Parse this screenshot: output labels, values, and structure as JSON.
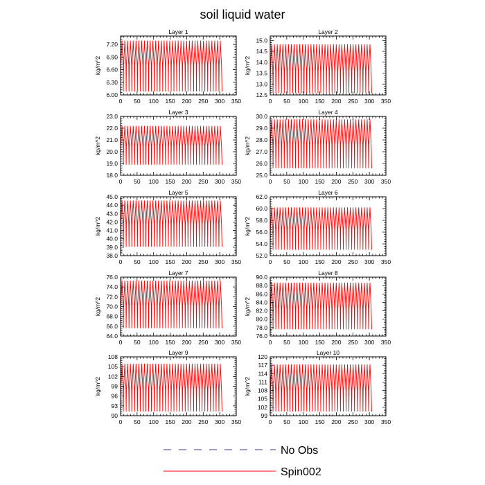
{
  "figure": {
    "title": "soil liquid water"
  },
  "legend": {
    "placement": "bottom-center",
    "entries": [
      {
        "label": "No Obs",
        "color": "#3b3b8f",
        "dash": true
      },
      {
        "label": "Spin002",
        "color": "#ff0000",
        "dash": false
      }
    ]
  },
  "chart_data": [
    {
      "type": "line",
      "title": "Layer 1",
      "ylabel": "kg/m^2",
      "xlim": [
        0,
        350
      ],
      "ylim": [
        6.0,
        7.4
      ],
      "xticks": [
        0,
        50,
        100,
        150,
        200,
        250,
        300,
        350
      ],
      "xtick_labels": [
        "0",
        "50",
        "100",
        "150",
        "200",
        "250",
        "300",
        "350"
      ],
      "yticks": [
        6.0,
        6.3,
        6.6,
        6.9,
        7.2
      ],
      "ytick_labels": [
        "6.00",
        "6.30",
        "6.60",
        "6.90",
        "7.20"
      ],
      "series": [
        {
          "name": "Spin002",
          "color": "#ff0000",
          "x_start": 0,
          "x_end": 307,
          "period": 8.5,
          "min": 6.08,
          "low": 6.72,
          "high": 7.12,
          "max": 7.29
        }
      ]
    },
    {
      "type": "line",
      "title": "Layer 2",
      "ylabel": "kg/m^2",
      "xlim": [
        0,
        350
      ],
      "ylim": [
        12.5,
        15.2
      ],
      "xticks": [
        0,
        50,
        100,
        150,
        200,
        250,
        300,
        350
      ],
      "xtick_labels": [
        "0",
        "50",
        "100",
        "150",
        "200",
        "250",
        "300",
        "350"
      ],
      "yticks": [
        12.5,
        13.0,
        13.5,
        14.0,
        14.5,
        15.0
      ],
      "ytick_labels": [
        "12.5",
        "13.0",
        "13.5",
        "14.0",
        "14.5",
        "15.0"
      ],
      "series": [
        {
          "name": "Spin002",
          "color": "#ff0000",
          "x_start": 0,
          "x_end": 307,
          "period": 8.5,
          "min": 12.58,
          "low": 13.6,
          "high": 14.55,
          "max": 14.82
        }
      ]
    },
    {
      "type": "line",
      "title": "Layer 3",
      "ylabel": "kg/m^2",
      "xlim": [
        0,
        350
      ],
      "ylim": [
        18.0,
        23.0
      ],
      "xticks": [
        0,
        50,
        100,
        150,
        200,
        250,
        300,
        350
      ],
      "xtick_labels": [
        "0",
        "50",
        "100",
        "150",
        "200",
        "250",
        "300",
        "350"
      ],
      "yticks": [
        18.0,
        19.0,
        20.0,
        21.0,
        22.0,
        23.0
      ],
      "ytick_labels": [
        "18.0",
        "19.0",
        "20.0",
        "21.0",
        "22.0",
        "23.0"
      ],
      "series": [
        {
          "name": "Spin002",
          "color": "#ff0000",
          "x_start": 0,
          "x_end": 307,
          "period": 8.5,
          "min": 18.9,
          "low": 20.5,
          "high": 21.7,
          "max": 22.2
        }
      ]
    },
    {
      "type": "line",
      "title": "Layer 4",
      "ylabel": "kg/m^2",
      "xlim": [
        0,
        350
      ],
      "ylim": [
        25.0,
        30.0
      ],
      "xticks": [
        0,
        50,
        100,
        150,
        200,
        250,
        300,
        350
      ],
      "xtick_labels": [
        "0",
        "50",
        "100",
        "150",
        "200",
        "250",
        "300",
        "350"
      ],
      "yticks": [
        25.0,
        26.0,
        27.0,
        28.0,
        29.0,
        30.0
      ],
      "ytick_labels": [
        "25.0",
        "26.0",
        "27.0",
        "28.0",
        "29.0",
        "30.0"
      ],
      "series": [
        {
          "name": "Spin002",
          "color": "#ff0000",
          "x_start": 0,
          "x_end": 307,
          "period": 8.5,
          "min": 25.6,
          "low": 27.6,
          "high": 29.2,
          "max": 29.75
        }
      ]
    },
    {
      "type": "line",
      "title": "Layer 5",
      "ylabel": "kg/m^2",
      "xlim": [
        0,
        350
      ],
      "ylim": [
        38.0,
        45.0
      ],
      "xticks": [
        0,
        50,
        100,
        150,
        200,
        250,
        300,
        350
      ],
      "xtick_labels": [
        "0",
        "50",
        "100",
        "150",
        "200",
        "250",
        "300",
        "350"
      ],
      "yticks": [
        38.0,
        39.0,
        40.0,
        41.0,
        42.0,
        43.0,
        44.0,
        45.0
      ],
      "ytick_labels": [
        "38.0",
        "39.0",
        "40.0",
        "41.0",
        "42.0",
        "43.0",
        "44.0",
        "45.0"
      ],
      "series": [
        {
          "name": "Spin002",
          "color": "#ff0000",
          "x_start": 0,
          "x_end": 307,
          "period": 8.5,
          "min": 39.05,
          "low": 41.8,
          "high": 43.9,
          "max": 44.55
        }
      ]
    },
    {
      "type": "line",
      "title": "Layer 6",
      "ylabel": "kg/m^2",
      "xlim": [
        0,
        350
      ],
      "ylim": [
        52.0,
        62.0
      ],
      "xticks": [
        0,
        50,
        100,
        150,
        200,
        250,
        300,
        350
      ],
      "xtick_labels": [
        "0",
        "50",
        "100",
        "150",
        "200",
        "250",
        "300",
        "350"
      ],
      "yticks": [
        52.0,
        54.0,
        56.0,
        58.0,
        60.0,
        62.0
      ],
      "ytick_labels": [
        "52.0",
        "54.0",
        "56.0",
        "58.0",
        "60.0",
        "62.0"
      ],
      "series": [
        {
          "name": "Spin002",
          "color": "#ff0000",
          "x_start": 0,
          "x_end": 307,
          "period": 8.5,
          "min": 53.0,
          "low": 56.5,
          "high": 59.2,
          "max": 60.2
        }
      ]
    },
    {
      "type": "line",
      "title": "Layer 7",
      "ylabel": "kg/m^2",
      "xlim": [
        0,
        350
      ],
      "ylim": [
        64.0,
        76.0
      ],
      "xticks": [
        0,
        50,
        100,
        150,
        200,
        250,
        300,
        350
      ],
      "xtick_labels": [
        "0",
        "50",
        "100",
        "150",
        "200",
        "250",
        "300",
        "350"
      ],
      "yticks": [
        64.0,
        66.0,
        68.0,
        70.0,
        72.0,
        74.0,
        76.0
      ],
      "ytick_labels": [
        "64.0",
        "66.0",
        "68.0",
        "70.0",
        "72.0",
        "74.0",
        "76.0"
      ],
      "series": [
        {
          "name": "Spin002",
          "color": "#ff0000",
          "x_start": 0,
          "x_end": 307,
          "period": 8.5,
          "min": 65.6,
          "low": 70.2,
          "high": 74.0,
          "max": 75.3
        }
      ]
    },
    {
      "type": "line",
      "title": "Layer 8",
      "ylabel": "kg/m^2",
      "xlim": [
        0,
        350
      ],
      "ylim": [
        76.0,
        90.0
      ],
      "xticks": [
        0,
        50,
        100,
        150,
        200,
        250,
        300,
        350
      ],
      "xtick_labels": [
        "0",
        "50",
        "100",
        "150",
        "200",
        "250",
        "300",
        "350"
      ],
      "yticks": [
        76.0,
        78.0,
        80.0,
        82.0,
        84.0,
        86.0,
        88.0,
        90.0
      ],
      "ytick_labels": [
        "76.0",
        "78.0",
        "80.0",
        "82.0",
        "84.0",
        "86.0",
        "88.0",
        "90.0"
      ],
      "series": [
        {
          "name": "Spin002",
          "color": "#ff0000",
          "x_start": 0,
          "x_end": 307,
          "period": 8.5,
          "min": 77.6,
          "low": 82.5,
          "high": 87.3,
          "max": 88.7
        }
      ]
    },
    {
      "type": "line",
      "title": "Layer 9",
      "ylabel": "kg/m^2",
      "xlim": [
        0,
        350
      ],
      "ylim": [
        90,
        108
      ],
      "xticks": [
        0,
        50,
        100,
        150,
        200,
        250,
        300,
        350
      ],
      "xtick_labels": [
        "0",
        "50",
        "100",
        "150",
        "200",
        "250",
        "300",
        "350"
      ],
      "yticks": [
        90,
        93,
        96,
        99,
        102,
        105,
        108
      ],
      "ytick_labels": [
        "90",
        "93",
        "96",
        "99",
        "102",
        "105",
        "108"
      ],
      "series": [
        {
          "name": "Spin002",
          "color": "#ff0000",
          "x_start": 0,
          "x_end": 307,
          "period": 8.5,
          "min": 91.3,
          "low": 98.0,
          "high": 103.8,
          "max": 105.9
        }
      ]
    },
    {
      "type": "line",
      "title": "Layer 10",
      "ylabel": "kg/m^2",
      "xlim": [
        0,
        350
      ],
      "ylim": [
        99,
        120
      ],
      "xticks": [
        0,
        50,
        100,
        150,
        200,
        250,
        300,
        350
      ],
      "xtick_labels": [
        "0",
        "50",
        "100",
        "150",
        "200",
        "250",
        "300",
        "350"
      ],
      "yticks": [
        99,
        102,
        105,
        108,
        111,
        114,
        117,
        120
      ],
      "ytick_labels": [
        "99",
        "102",
        "105",
        "108",
        "111",
        "114",
        "117",
        "120"
      ],
      "series": [
        {
          "name": "Spin002",
          "color": "#ff0000",
          "x_start": 0,
          "x_end": 307,
          "period": 8.5,
          "min": 100.5,
          "low": 108.0,
          "high": 115.0,
          "max": 117.3
        }
      ]
    }
  ]
}
